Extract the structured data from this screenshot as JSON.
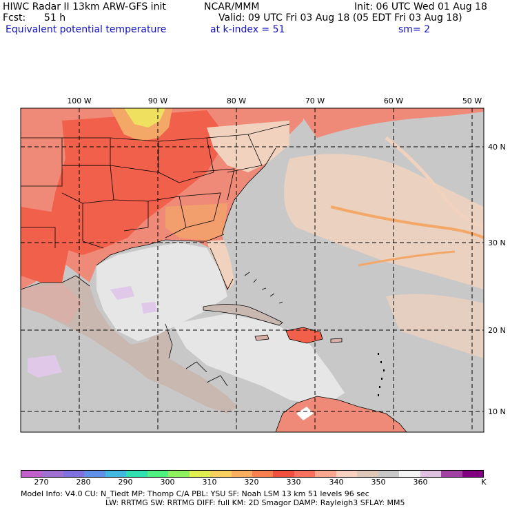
{
  "header": {
    "line1_left": "HIWC Radar II 13km ARW-GFS init",
    "line1_mid": "NCAR/MMM",
    "line1_right": "Init: 06 UTC Wed 01 Aug 18",
    "fcst_label": "Fcst:",
    "fcst_value": "51 h",
    "valid": "Valid: 09 UTC Fri 03 Aug 18 (05 EDT Fri 03 Aug 18)",
    "field": "Equivalent potential temperature",
    "level": "at k-index =  51",
    "smooth": "sm= 2"
  },
  "map": {
    "lon_labels": [
      "100 W",
      "90 W",
      "80 W",
      "70 W",
      "60 W",
      "50 W"
    ],
    "lat_labels": [
      "40 N",
      "30 N",
      "20 N",
      "10 N"
    ],
    "colors": {
      "land_warm": "#f08a78",
      "land_hot": "#f0604a",
      "land_hotter": "#ff5040",
      "yellow": "#f0e060",
      "orange": "#f4a868",
      "ocean_gray": "#c8c8c8",
      "gulf_light": "#e6e6e6",
      "tan": "#f0d2be",
      "lavender": "#e0c8e8",
      "grid": "#000000"
    }
  },
  "colorbar": {
    "colors": [
      "#c060c8",
      "#a070d0",
      "#8070e0",
      "#6090e8",
      "#40b8e0",
      "#30e0b0",
      "#50f080",
      "#90f060",
      "#e0f050",
      "#f8d060",
      "#f8b060",
      "#f88050",
      "#f05040",
      "#f87060",
      "#f8a890",
      "#f8d2be",
      "#e0c8b8",
      "#c8c8c8",
      "#f4f4f4",
      "#e0c0e0",
      "#a040a0",
      "#800080"
    ],
    "labels": [
      "270",
      "280",
      "290",
      "300",
      "310",
      "320",
      "330",
      "340",
      "350",
      "360",
      "K"
    ]
  },
  "footer": {
    "line1": "Model Info: V4.0     CU: N_Tiedt  MP: Thomp C/A    PBL: YSU      SF: Noah LSM     13 km    51 levels   96 sec",
    "line2": "LW: RRTMG    SW: RRTMG  DIFF: full    KM: 2D Smagor DAMP: Rayleigh3  SFLAY: MM5"
  }
}
